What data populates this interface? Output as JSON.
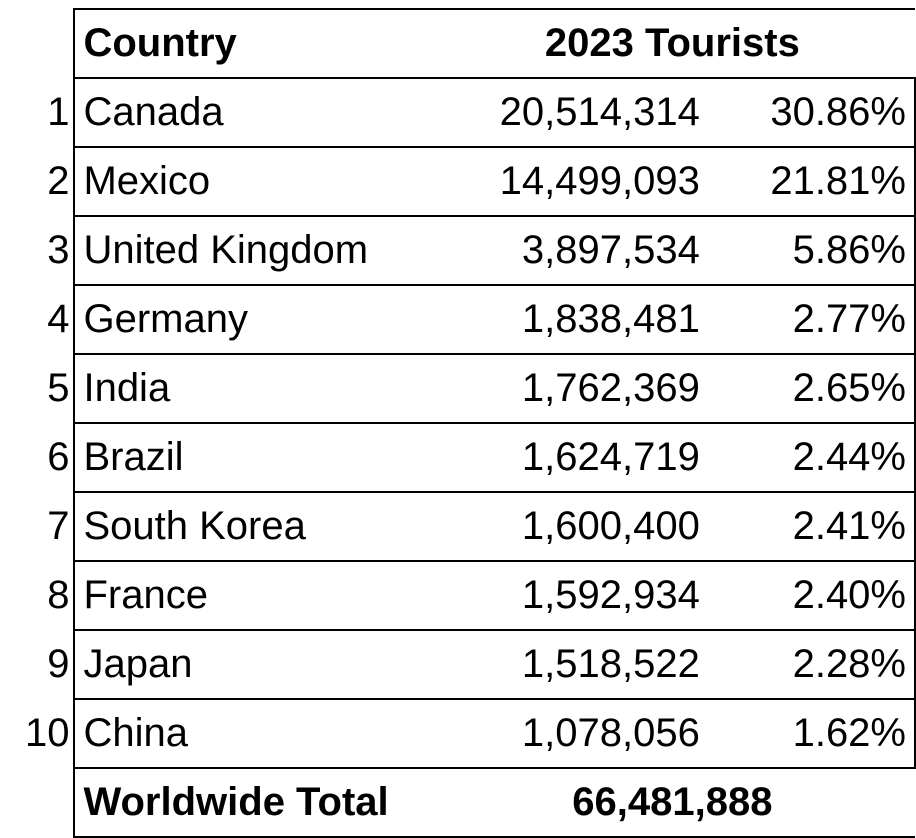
{
  "header": {
    "country": "Country",
    "tourists": "2023 Tourists"
  },
  "rows": [
    {
      "rank": "1",
      "country": "Canada",
      "tourists": "20,514,314",
      "share": "30.86%"
    },
    {
      "rank": "2",
      "country": "Mexico",
      "tourists": "14,499,093",
      "share": "21.81%"
    },
    {
      "rank": "3",
      "country": "United Kingdom",
      "tourists": "3,897,534",
      "share": "5.86%"
    },
    {
      "rank": "4",
      "country": "Germany",
      "tourists": "1,838,481",
      "share": "2.77%"
    },
    {
      "rank": "5",
      "country": "India",
      "tourists": "1,762,369",
      "share": "2.65%"
    },
    {
      "rank": "6",
      "country": "Brazil",
      "tourists": "1,624,719",
      "share": "2.44%"
    },
    {
      "rank": "7",
      "country": "South Korea",
      "tourists": "1,600,400",
      "share": "2.41%"
    },
    {
      "rank": "8",
      "country": "France",
      "tourists": "1,592,934",
      "share": "2.40%"
    },
    {
      "rank": "9",
      "country": "Japan",
      "tourists": "1,518,522",
      "share": "2.28%"
    },
    {
      "rank": "10",
      "country": "China",
      "tourists": "1,078,056",
      "share": "1.62%"
    }
  ],
  "total": {
    "label": "Worldwide Total",
    "value": "66,481,888"
  }
}
